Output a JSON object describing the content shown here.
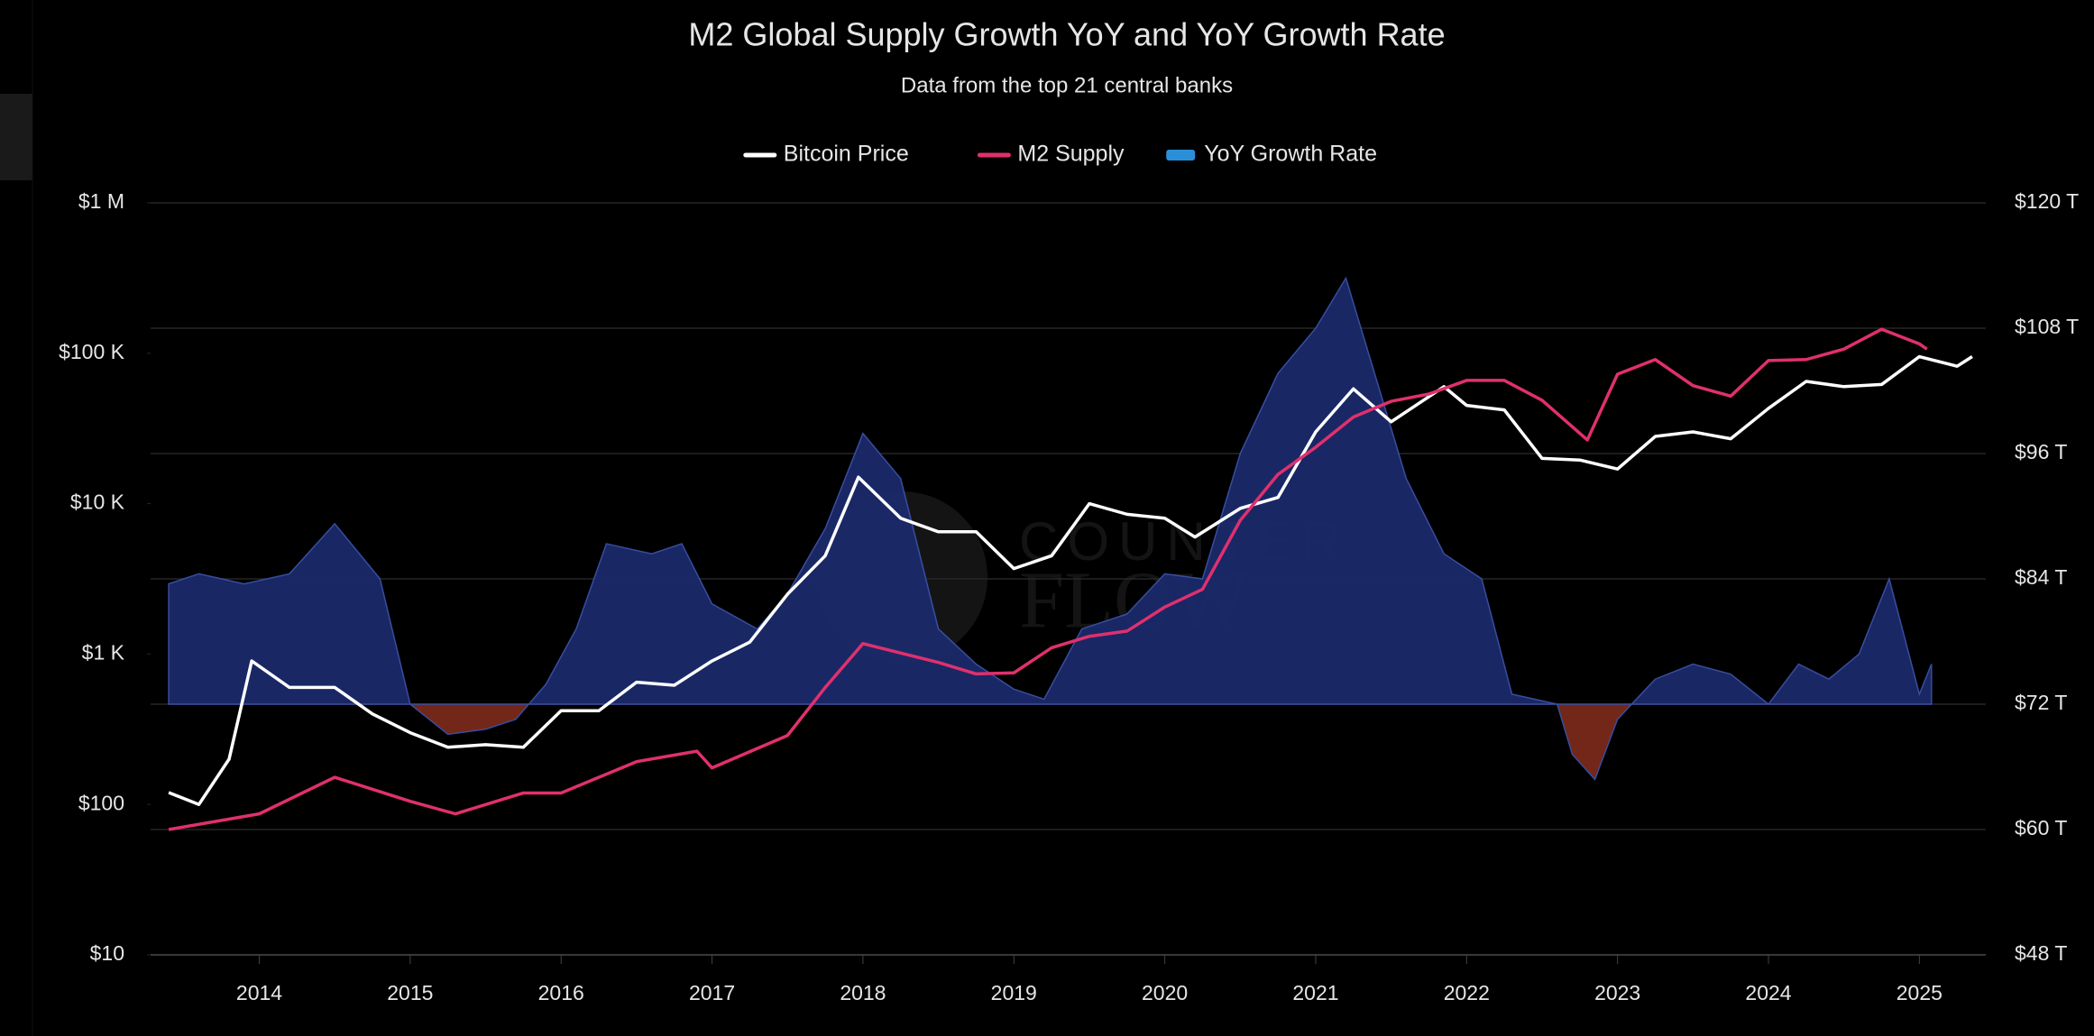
{
  "chart_data": {
    "type": "line",
    "title": "M2 Global Supply Growth YoY and YoY Growth Rate",
    "subtitle": "Data from the top 21 central banks",
    "watermark": [
      "COUNTER",
      "FLOW"
    ],
    "legend": "top",
    "grid": true,
    "yscale": "log",
    "xlim": [
      2013.28,
      2025.44
    ],
    "xticks": [
      2014,
      2015,
      2016,
      2017,
      2018,
      2019,
      2020,
      2021,
      2022,
      2023,
      2024,
      2025
    ],
    "ylim": [
      10,
      1000000
    ],
    "yticks": [
      {
        "value": 10,
        "label": "$10"
      },
      {
        "value": 100,
        "label": "$100"
      },
      {
        "value": 1000,
        "label": "$1 K"
      },
      {
        "value": 10000,
        "label": "$10 K"
      },
      {
        "value": 100000,
        "label": "$100 K"
      },
      {
        "value": 1000000,
        "label": "$1 M"
      }
    ],
    "y2lim": [
      48,
      120
    ],
    "y2ticks": [
      {
        "value": 48,
        "label": "$48 T"
      },
      {
        "value": 60,
        "label": "$60 T"
      },
      {
        "value": 72,
        "label": "$72 T"
      },
      {
        "value": 84,
        "label": "$84 T"
      },
      {
        "value": 96,
        "label": "$96 T"
      },
      {
        "value": 108,
        "label": "$108 T"
      },
      {
        "value": 120,
        "label": "$120 T"
      }
    ],
    "y3lim": [
      -5,
      10
    ],
    "series": [
      {
        "name": "Bitcoin Price",
        "type": "line",
        "axis": "y",
        "color": "#ffffff",
        "x": [
          2013.4,
          2013.6,
          2013.8,
          2013.95,
          2014.2,
          2014.5,
          2014.75,
          2015.0,
          2015.25,
          2015.5,
          2015.75,
          2016.0,
          2016.25,
          2016.5,
          2016.75,
          2017.0,
          2017.25,
          2017.5,
          2017.75,
          2017.97,
          2018.25,
          2018.5,
          2018.75,
          2019.0,
          2019.25,
          2019.5,
          2019.75,
          2020.0,
          2020.2,
          2020.5,
          2020.75,
          2021.0,
          2021.25,
          2021.5,
          2021.85,
          2022.0,
          2022.25,
          2022.5,
          2022.75,
          2023.0,
          2023.25,
          2023.5,
          2023.75,
          2024.0,
          2024.25,
          2024.5,
          2024.75,
          2025.0,
          2025.25,
          2025.35
        ],
        "values": [
          120,
          100,
          200,
          900,
          600,
          600,
          400,
          300,
          240,
          250,
          240,
          420,
          420,
          650,
          620,
          900,
          1200,
          2500,
          4500,
          15000,
          8000,
          6500,
          6500,
          3700,
          4500,
          10000,
          8500,
          8000,
          6000,
          9300,
          11000,
          30000,
          58000,
          35000,
          60000,
          45000,
          42000,
          20000,
          19500,
          17000,
          28000,
          30000,
          27000,
          43000,
          65000,
          60000,
          62000,
          95000,
          82000,
          95000
        ]
      },
      {
        "name": "M2 Supply",
        "type": "line",
        "axis": "y2",
        "color": "#e0306e",
        "x": [
          2013.4,
          2014.0,
          2014.5,
          2015.0,
          2015.3,
          2015.75,
          2016.0,
          2016.5,
          2016.9,
          2017.0,
          2017.5,
          2017.75,
          2018.0,
          2018.5,
          2018.75,
          2019.0,
          2019.25,
          2019.5,
          2019.75,
          2020.0,
          2020.25,
          2020.5,
          2020.75,
          2021.0,
          2021.25,
          2021.5,
          2021.75,
          2022.0,
          2022.25,
          2022.5,
          2022.8,
          2023.0,
          2023.25,
          2023.5,
          2023.75,
          2024.0,
          2024.25,
          2024.5,
          2024.75,
          2025.0,
          2025.05
        ],
        "values": [
          60,
          61.5,
          65,
          62.7,
          61.5,
          63.5,
          63.5,
          66.5,
          67.5,
          65.9,
          69,
          73.6,
          77.8,
          76,
          74.9,
          75,
          77.4,
          78.5,
          79,
          81.3,
          83,
          89.6,
          94,
          96.6,
          99.5,
          101,
          101.7,
          103,
          103,
          101.1,
          97.3,
          103.6,
          105,
          102.5,
          101.5,
          104.9,
          105,
          106,
          107.9,
          106.5,
          106
        ]
      },
      {
        "name": "YoY Growth Rate",
        "type": "area",
        "axis": "y3",
        "color": "#1b2a6b",
        "negative_color": "#7a2a1a",
        "x": [
          2013.4,
          2013.6,
          2013.9,
          2014.2,
          2014.5,
          2014.8,
          2015.0,
          2015.25,
          2015.5,
          2015.7,
          2015.9,
          2016.1,
          2016.3,
          2016.6,
          2016.8,
          2017.0,
          2017.3,
          2017.5,
          2017.75,
          2018.0,
          2018.25,
          2018.5,
          2018.75,
          2019.0,
          2019.2,
          2019.45,
          2019.75,
          2020.0,
          2020.25,
          2020.5,
          2020.75,
          2021.0,
          2021.2,
          2021.4,
          2021.6,
          2021.85,
          2022.1,
          2022.3,
          2022.6,
          2022.7,
          2022.85,
          2023.0,
          2023.25,
          2023.5,
          2023.75,
          2024.0,
          2024.2,
          2024.4,
          2024.6,
          2024.8,
          2025.0,
          2025.08
        ],
        "values": [
          2.4,
          2.6,
          2.4,
          2.6,
          3.6,
          2.5,
          0,
          -0.6,
          -0.5,
          -0.3,
          0.4,
          1.5,
          3.2,
          3.0,
          3.2,
          2.0,
          1.5,
          2.2,
          3.5,
          5.4,
          4.5,
          1.5,
          0.8,
          0.3,
          0.1,
          1.5,
          1.8,
          2.6,
          2.5,
          5.0,
          6.6,
          7.5,
          8.5,
          6.5,
          4.5,
          3.0,
          2.5,
          0.2,
          0,
          -1.0,
          -1.5,
          -0.3,
          0.5,
          0.8,
          0.6,
          0,
          0.8,
          0.5,
          1.0,
          2.5,
          0.2,
          0.8
        ]
      }
    ]
  }
}
